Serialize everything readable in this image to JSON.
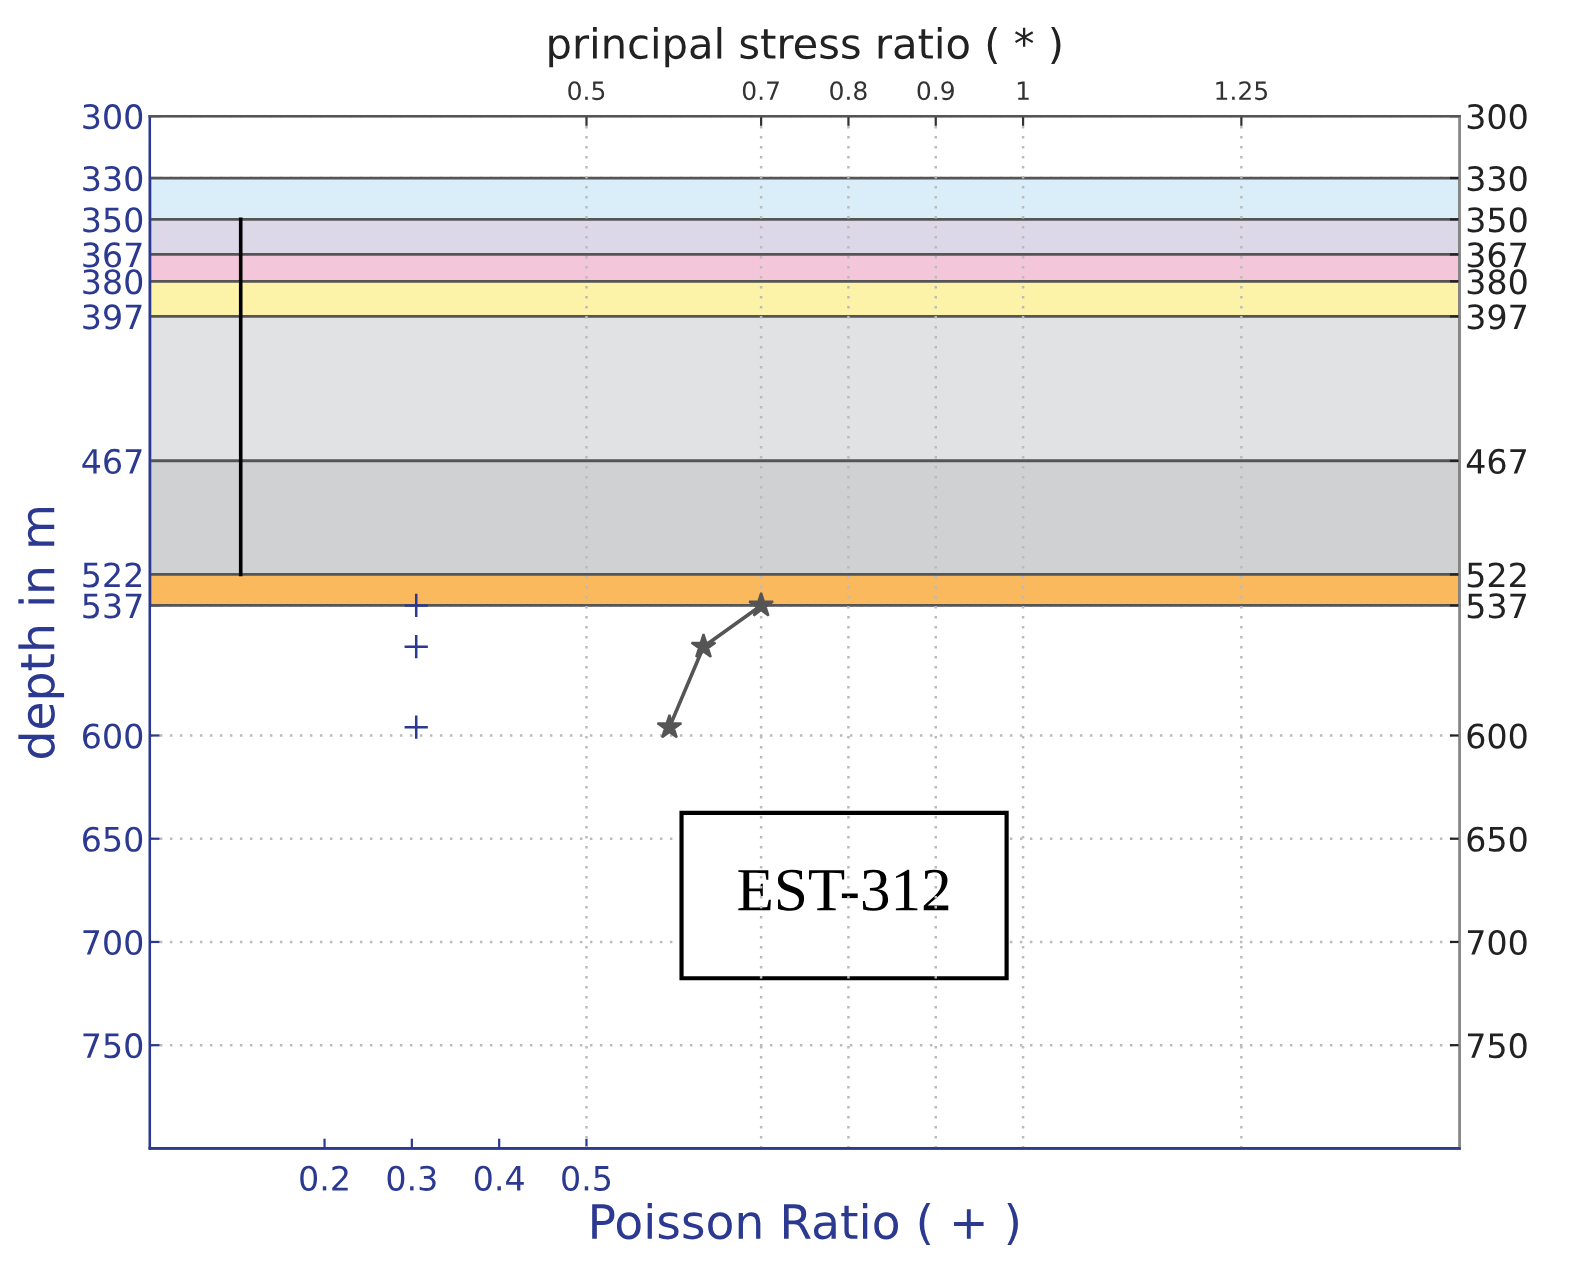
{
  "chart_data": {
    "type": "scatter",
    "xlabel": "Poisson Ratio ( + )",
    "x2label": "principal stress ratio ( * )",
    "ylabel": "depth in m",
    "xlim": [
      0,
      1.5
    ],
    "xticks": [
      0.2,
      0.3,
      0.4,
      0.5
    ],
    "x2lim": [
      0,
      1.5
    ],
    "x2ticks": [
      0.5,
      0.7,
      0.8,
      0.9,
      1,
      1.25
    ],
    "ylim": [
      800,
      300
    ],
    "yticks": [
      300,
      330,
      350,
      367,
      380,
      397,
      467,
      522,
      537,
      600,
      650,
      700,
      750
    ],
    "y2lim": [
      800,
      300
    ],
    "y2ticks": [
      300,
      330,
      350,
      367,
      380,
      397,
      467,
      522,
      537,
      600,
      650,
      700,
      750
    ],
    "grid": true,
    "bands": [
      {
        "axis": "y",
        "from": 330,
        "to": 350,
        "color": "#d9eef8"
      },
      {
        "axis": "y",
        "from": 350,
        "to": 367,
        "color": "#dcd8e8"
      },
      {
        "axis": "y",
        "from": 367,
        "to": 380,
        "color": "#f4c6d9"
      },
      {
        "axis": "y",
        "from": 380,
        "to": 397,
        "color": "#fdf3a8"
      },
      {
        "axis": "y",
        "from": 397,
        "to": 467,
        "color": "#e1e2e4"
      },
      {
        "axis": "y",
        "from": 467,
        "to": 522,
        "color": "#d0d1d3"
      },
      {
        "axis": "y",
        "from": 522,
        "to": 537,
        "color": "#f9b95c"
      }
    ],
    "series": [
      {
        "color": "#2b3990",
        "marker": "cross",
        "x": [
          0.305,
          0.305,
          0.305
        ],
        "values": [
          537,
          557,
          596
        ]
      },
      {
        "type": "line",
        "axis": "x2",
        "color": "#555555",
        "marker": "star",
        "line_style": "solid",
        "x": [
          0.7,
          0.634,
          0.595
        ],
        "values": [
          537,
          557,
          596
        ]
      },
      {
        "type": "line",
        "color": "#000000",
        "marker": "none",
        "line_style": "solid",
        "x": [
          0.104,
          0.104
        ],
        "values": [
          350,
          522
        ]
      }
    ],
    "annotations": [
      "EST-312"
    ]
  }
}
